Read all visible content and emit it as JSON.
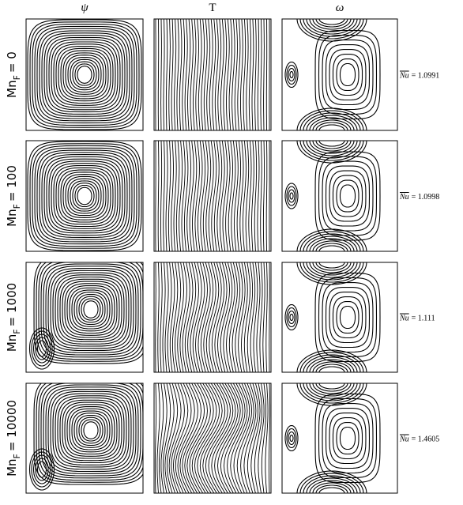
{
  "columns": [
    "ψ",
    "T",
    "ω"
  ],
  "rows": [
    {
      "mn": "Mn",
      "sub": "F",
      "eq": "= 0",
      "nu_symbol": "Nu",
      "nu_eq": "= 1.0991"
    },
    {
      "mn": "Mn",
      "sub": "F",
      "eq": "= 100",
      "nu_symbol": "Nu",
      "nu_eq": "= 1.0998"
    },
    {
      "mn": "Mn",
      "sub": "F",
      "eq": "= 1000",
      "nu_symbol": "Nu",
      "nu_eq": "= 1.111"
    },
    {
      "mn": "Mn",
      "sub": "F",
      "eq": "= 10000",
      "nu_symbol": "Nu",
      "nu_eq": "= 1.4605"
    }
  ]
}
